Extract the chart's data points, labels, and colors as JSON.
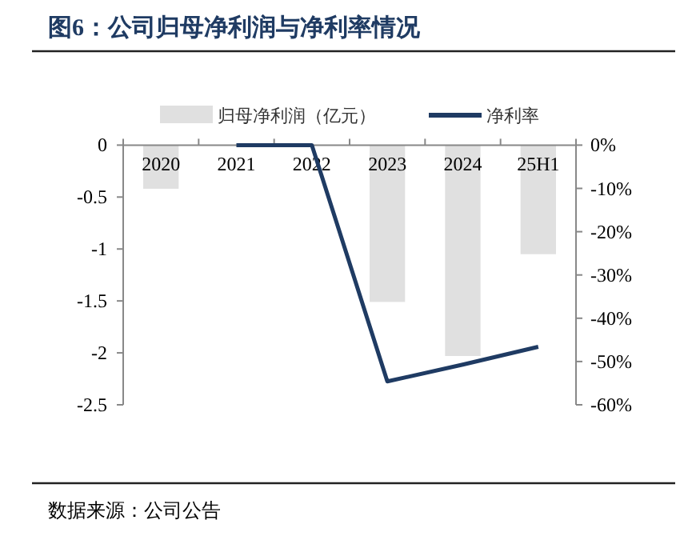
{
  "chart_data": {
    "type": "bar",
    "title": "图6：公司归母净利润与净利率情况",
    "categories": [
      "2020",
      "2021",
      "2022",
      "2023",
      "2024",
      "25H1"
    ],
    "series": [
      {
        "name": "归母净利润（亿元）",
        "color": "#e0e0e0",
        "values": [
          -0.42,
          null,
          null,
          -1.51,
          -2.03,
          -1.05
        ]
      },
      {
        "name": "净利率",
        "type": "line",
        "axis": "y2",
        "color": "#1f3b63",
        "values": [
          null,
          0,
          0,
          -54.6,
          -50.7,
          -46.6
        ]
      }
    ],
    "ylim": [
      -2.5,
      0
    ],
    "yticks": [
      0,
      -0.5,
      -1,
      -1.5,
      -2,
      -2.5
    ],
    "y2lim": [
      -60,
      0
    ],
    "y2ticks": [
      {
        "value": 0,
        "label": "0%"
      },
      {
        "value": -10,
        "label": "-10%"
      },
      {
        "value": -20,
        "label": "-20%"
      },
      {
        "value": -30,
        "label": "-30%"
      },
      {
        "value": -40,
        "label": "-40%"
      },
      {
        "value": -50,
        "label": "-50%"
      },
      {
        "value": -60,
        "label": "-60%"
      }
    ],
    "legend": "top",
    "annotations": [
      "数据来源：公司公告"
    ]
  }
}
